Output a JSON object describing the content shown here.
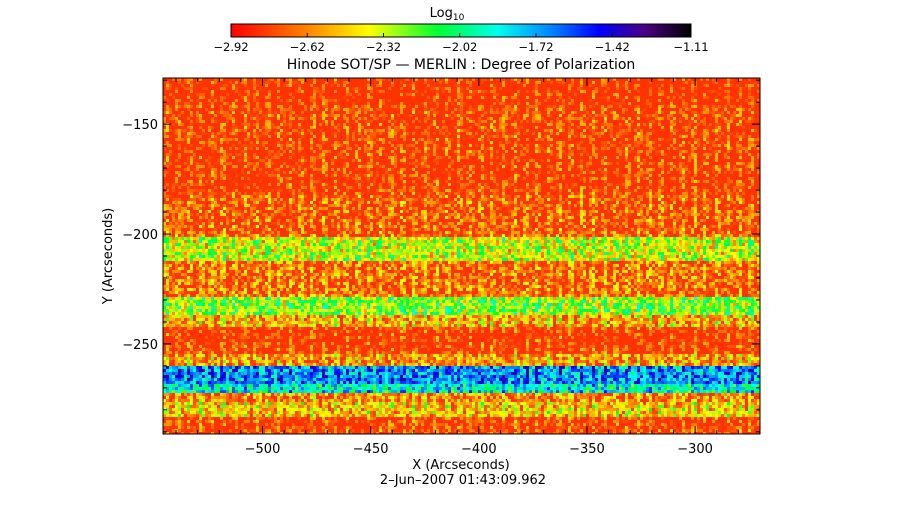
{
  "chart_data": {
    "type": "heatmap",
    "title": "Hinode SOT/SP — MERLIN : Degree of Polarization",
    "xlabel": "X (Arcseconds)",
    "ylabel": "Y (Arcseconds)",
    "timestamp": "2–Jun–2007 01:43:09.962",
    "xlim": [
      -546,
      -270
    ],
    "ylim": [
      -291,
      -129
    ],
    "x_ticks": [
      -500,
      -450,
      -400,
      -350,
      -300
    ],
    "x_tick_labels": [
      "−500",
      "−450",
      "−400",
      "−350",
      "−300"
    ],
    "y_ticks": [
      -150,
      -200,
      -250
    ],
    "y_tick_labels": [
      "−150",
      "−200",
      "−250"
    ],
    "colorbar": {
      "label_base": "Log",
      "label_sub": "10",
      "range": [
        -2.92,
        -1.11
      ],
      "ticks": [
        -2.92,
        -2.62,
        -2.32,
        -2.02,
        -1.72,
        -1.42,
        -1.11
      ],
      "tick_labels": [
        "−2.92",
        "−2.62",
        "−2.32",
        "−2.02",
        "−1.72",
        "−1.42",
        "−1.11"
      ]
    },
    "colors": {
      "low": "#ff0000",
      "mid_low": "#ffff00",
      "mid": "#00ff66",
      "mid_high": "#00c8ff",
      "high_blue": "#0000ff",
      "high": "#000000"
    },
    "bands": [
      {
        "y": [
          -291,
          -282
        ],
        "level": -2.78
      },
      {
        "y": [
          -282,
          -276
        ],
        "level": -2.45
      },
      {
        "y": [
          -276,
          -271
        ],
        "level": -2.6
      },
      {
        "y": [
          -271,
          -267
        ],
        "level": -1.85
      },
      {
        "y": [
          -267,
          -260
        ],
        "level": -1.65
      },
      {
        "y": [
          -260,
          -254
        ],
        "level": -2.55
      },
      {
        "y": [
          -254,
          -242
        ],
        "level": -2.8
      },
      {
        "y": [
          -242,
          -236
        ],
        "level": -2.5
      },
      {
        "y": [
          -236,
          -228
        ],
        "level": -2.2
      },
      {
        "y": [
          -228,
          -212
        ],
        "level": -2.65
      },
      {
        "y": [
          -212,
          -200
        ],
        "level": -2.3
      },
      {
        "y": [
          -200,
          -182
        ],
        "level": -2.7
      },
      {
        "y": [
          -182,
          -162
        ],
        "level": -2.8
      },
      {
        "y": [
          -162,
          -140
        ],
        "level": -2.78
      },
      {
        "y": [
          -140,
          -129
        ],
        "level": -2.85
      }
    ]
  }
}
